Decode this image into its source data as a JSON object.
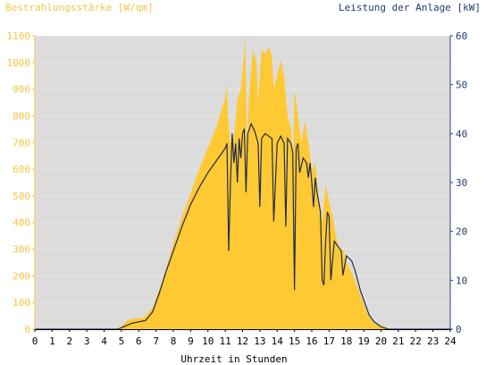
{
  "chart_data": {
    "type": "area",
    "left_axis_title": "Bestrahlungsstärke [W/qm]",
    "right_axis_title": "Leistung der Anlage [kW]",
    "xlabel": "Uhrzeit in Stunden",
    "xlim": [
      0,
      24
    ],
    "ylim_left": [
      0,
      1100
    ],
    "ylim_right": [
      0,
      60
    ],
    "x_ticks": [
      "0",
      "1",
      "2",
      "3",
      "4",
      "5",
      "6",
      "7",
      "8",
      "9",
      "10",
      "11",
      "12",
      "13",
      "14",
      "15",
      "16",
      "17",
      "18",
      "19",
      "20",
      "21",
      "22",
      "23",
      "24"
    ],
    "y_ticks_left": [
      "0",
      "100",
      "200",
      "300",
      "400",
      "500",
      "600",
      "700",
      "800",
      "900",
      "1000",
      "1100"
    ],
    "y_ticks_right": [
      "0",
      "10",
      "20",
      "30",
      "40",
      "50",
      "60"
    ],
    "grid": "horizontal",
    "series": [
      {
        "axis": "left",
        "style": "area",
        "color": "#ffc933",
        "points": [
          [
            0,
            0
          ],
          [
            4.6,
            0
          ],
          [
            5.0,
            10
          ],
          [
            5.3,
            30
          ],
          [
            5.6,
            40
          ],
          [
            6.0,
            40
          ],
          [
            6.3,
            45
          ],
          [
            6.8,
            80
          ],
          [
            7.2,
            150
          ],
          [
            7.6,
            230
          ],
          [
            8.0,
            320
          ],
          [
            8.5,
            420
          ],
          [
            9.0,
            510
          ],
          [
            9.5,
            600
          ],
          [
            10.0,
            680
          ],
          [
            10.5,
            760
          ],
          [
            11.0,
            870
          ],
          [
            11.1,
            920
          ],
          [
            11.15,
            800
          ],
          [
            11.3,
            700
          ],
          [
            11.5,
            720
          ],
          [
            11.7,
            860
          ],
          [
            11.9,
            900
          ],
          [
            12.05,
            1000
          ],
          [
            12.15,
            1100
          ],
          [
            12.25,
            700
          ],
          [
            12.4,
            900
          ],
          [
            12.6,
            1050
          ],
          [
            12.8,
            1000
          ],
          [
            12.9,
            850
          ],
          [
            13.1,
            1050
          ],
          [
            13.3,
            1030
          ],
          [
            13.5,
            1060
          ],
          [
            13.7,
            1020
          ],
          [
            13.8,
            900
          ],
          [
            14.0,
            950
          ],
          [
            14.2,
            1010
          ],
          [
            14.4,
            950
          ],
          [
            14.6,
            800
          ],
          [
            14.8,
            750
          ],
          [
            14.9,
            600
          ],
          [
            15.0,
            900
          ],
          [
            15.2,
            800
          ],
          [
            15.4,
            700
          ],
          [
            15.6,
            780
          ],
          [
            15.8,
            700
          ],
          [
            16.0,
            600
          ],
          [
            16.2,
            620
          ],
          [
            16.4,
            500
          ],
          [
            16.6,
            400
          ],
          [
            16.8,
            540
          ],
          [
            17.0,
            480
          ],
          [
            17.2,
            420
          ],
          [
            17.4,
            350
          ],
          [
            17.6,
            300
          ],
          [
            17.8,
            300
          ],
          [
            18.0,
            250
          ],
          [
            18.4,
            200
          ],
          [
            18.8,
            130
          ],
          [
            19.2,
            60
          ],
          [
            19.6,
            20
          ],
          [
            20.2,
            10
          ],
          [
            20.6,
            0
          ],
          [
            24,
            0
          ]
        ]
      },
      {
        "axis": "right",
        "style": "line",
        "color": "#1f2a4a",
        "points": [
          [
            0,
            0
          ],
          [
            4.8,
            0
          ],
          [
            5.2,
            0.6
          ],
          [
            5.6,
            1.2
          ],
          [
            6.0,
            1.5
          ],
          [
            6.4,
            1.8
          ],
          [
            6.8,
            3.5
          ],
          [
            7.2,
            7.5
          ],
          [
            7.6,
            12
          ],
          [
            8.0,
            16
          ],
          [
            8.5,
            21
          ],
          [
            9.0,
            25.5
          ],
          [
            9.5,
            29
          ],
          [
            10.0,
            32
          ],
          [
            10.5,
            34.5
          ],
          [
            11.0,
            37
          ],
          [
            11.1,
            38
          ],
          [
            11.2,
            16
          ],
          [
            11.3,
            30
          ],
          [
            11.4,
            40
          ],
          [
            11.5,
            34
          ],
          [
            11.6,
            38
          ],
          [
            11.7,
            30
          ],
          [
            11.8,
            39
          ],
          [
            11.9,
            35
          ],
          [
            12.0,
            40
          ],
          [
            12.1,
            41
          ],
          [
            12.2,
            28
          ],
          [
            12.3,
            40
          ],
          [
            12.5,
            42
          ],
          [
            12.7,
            40.5
          ],
          [
            12.9,
            38
          ],
          [
            13.0,
            25
          ],
          [
            13.1,
            39
          ],
          [
            13.3,
            40
          ],
          [
            13.5,
            39.5
          ],
          [
            13.7,
            39
          ],
          [
            13.8,
            22
          ],
          [
            14.0,
            38
          ],
          [
            14.2,
            39.5
          ],
          [
            14.4,
            38
          ],
          [
            14.5,
            21
          ],
          [
            14.6,
            39
          ],
          [
            14.8,
            38
          ],
          [
            14.9,
            36
          ],
          [
            15.0,
            8
          ],
          [
            15.1,
            37
          ],
          [
            15.2,
            38
          ],
          [
            15.3,
            32
          ],
          [
            15.5,
            35
          ],
          [
            15.7,
            34
          ],
          [
            15.8,
            31
          ],
          [
            15.9,
            34
          ],
          [
            16.0,
            30
          ],
          [
            16.1,
            25
          ],
          [
            16.2,
            31
          ],
          [
            16.3,
            28
          ],
          [
            16.5,
            24
          ],
          [
            16.6,
            10
          ],
          [
            16.7,
            9
          ],
          [
            16.8,
            18
          ],
          [
            16.9,
            24
          ],
          [
            17.0,
            23
          ],
          [
            17.1,
            10
          ],
          [
            17.3,
            18
          ],
          [
            17.5,
            17
          ],
          [
            17.7,
            16
          ],
          [
            17.8,
            11
          ],
          [
            18.0,
            15
          ],
          [
            18.3,
            14
          ],
          [
            18.5,
            12
          ],
          [
            18.8,
            8
          ],
          [
            19.0,
            6
          ],
          [
            19.3,
            3
          ],
          [
            19.6,
            1.5
          ],
          [
            20.0,
            0.5
          ],
          [
            20.4,
            0
          ],
          [
            24,
            0
          ]
        ]
      }
    ]
  }
}
